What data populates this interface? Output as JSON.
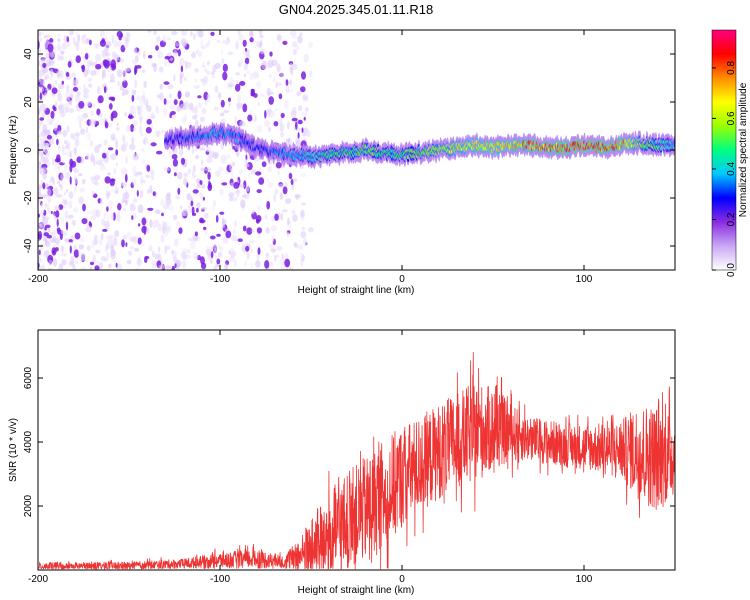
{
  "title": "GN04.2025.345.01.11.R18",
  "chart_data": [
    {
      "type": "heatmap",
      "xlabel": "Height of straight line (km)",
      "ylabel": "Frequency (Hz)",
      "xlim": [
        -200,
        150
      ],
      "ylim": [
        -50,
        50
      ],
      "xticks": [
        -200,
        -100,
        0,
        100
      ],
      "yticks": [
        -40,
        -20,
        0,
        20,
        40
      ],
      "colorbar": {
        "label": "Normalized spectral amplitude",
        "range": [
          0,
          0.95
        ],
        "ticks": [
          0.0,
          0.2,
          0.4,
          0.6,
          0.8
        ],
        "tick_labels": [
          "0.0",
          "0.2",
          "0.4",
          "0.6",
          "0.8"
        ],
        "colors": [
          "#ffffff",
          "#c9a8f5",
          "#8a2be2",
          "#0000ff",
          "#00c8ff",
          "#00ff7f",
          "#9aff00",
          "#ffff00",
          "#ff8c00",
          "#ff0000",
          "#ff007f"
        ]
      },
      "ridge": {
        "x": [
          -130,
          -110,
          -100,
          -90,
          -80,
          -70,
          -60,
          -50,
          -40,
          -30,
          -20,
          -10,
          0,
          10,
          20,
          30,
          40,
          50,
          60,
          70,
          80,
          90,
          100,
          110,
          120,
          130,
          140,
          150
        ],
        "y": [
          4,
          6,
          7,
          5,
          1,
          -1,
          -2,
          -3,
          -2,
          -1,
          0,
          -1,
          -2,
          -1,
          0,
          1,
          2,
          1,
          2,
          2,
          1,
          1,
          2,
          1,
          2,
          3,
          2,
          2
        ],
        "amplitude": [
          0.3,
          0.35,
          0.4,
          0.35,
          0.3,
          0.35,
          0.4,
          0.45,
          0.5,
          0.5,
          0.55,
          0.5,
          0.5,
          0.55,
          0.6,
          0.65,
          0.7,
          0.7,
          0.75,
          0.8,
          0.8,
          0.85,
          0.9,
          0.85,
          0.8,
          0.6,
          0.5,
          0.4
        ]
      },
      "noise_region": {
        "x_range": [
          -200,
          -70
        ],
        "amplitude_range": [
          0.02,
          0.15
        ]
      }
    },
    {
      "type": "line",
      "xlabel": "Height of straight line (km)",
      "ylabel": "SNR (10 * v/v)",
      "xlim": [
        -200,
        150
      ],
      "ylim": [
        0,
        7500
      ],
      "xticks": [
        -200,
        -100,
        0,
        100
      ],
      "yticks": [
        2000,
        4000,
        6000
      ],
      "color": "#ee3333",
      "envelope": {
        "x": [
          -200,
          -150,
          -120,
          -100,
          -80,
          -65,
          -55,
          -45,
          -35,
          -25,
          -15,
          -5,
          0,
          10,
          20,
          30,
          40,
          50,
          60,
          70,
          80,
          90,
          100,
          110,
          120,
          130,
          140,
          150
        ],
        "mean": [
          120,
          130,
          200,
          300,
          350,
          250,
          500,
          900,
          1300,
          1700,
          2100,
          2600,
          2900,
          3300,
          3700,
          4000,
          4300,
          4400,
          4300,
          4100,
          4000,
          3900,
          3850,
          3800,
          3750,
          3700,
          3500,
          3600
        ],
        "spread": [
          120,
          120,
          150,
          250,
          300,
          200,
          600,
          1200,
          1500,
          1600,
          1700,
          1700,
          1600,
          1500,
          1500,
          1500,
          1600,
          1300,
          900,
          700,
          700,
          700,
          700,
          800,
          900,
          1500,
          1700,
          1300
        ]
      }
    }
  ]
}
